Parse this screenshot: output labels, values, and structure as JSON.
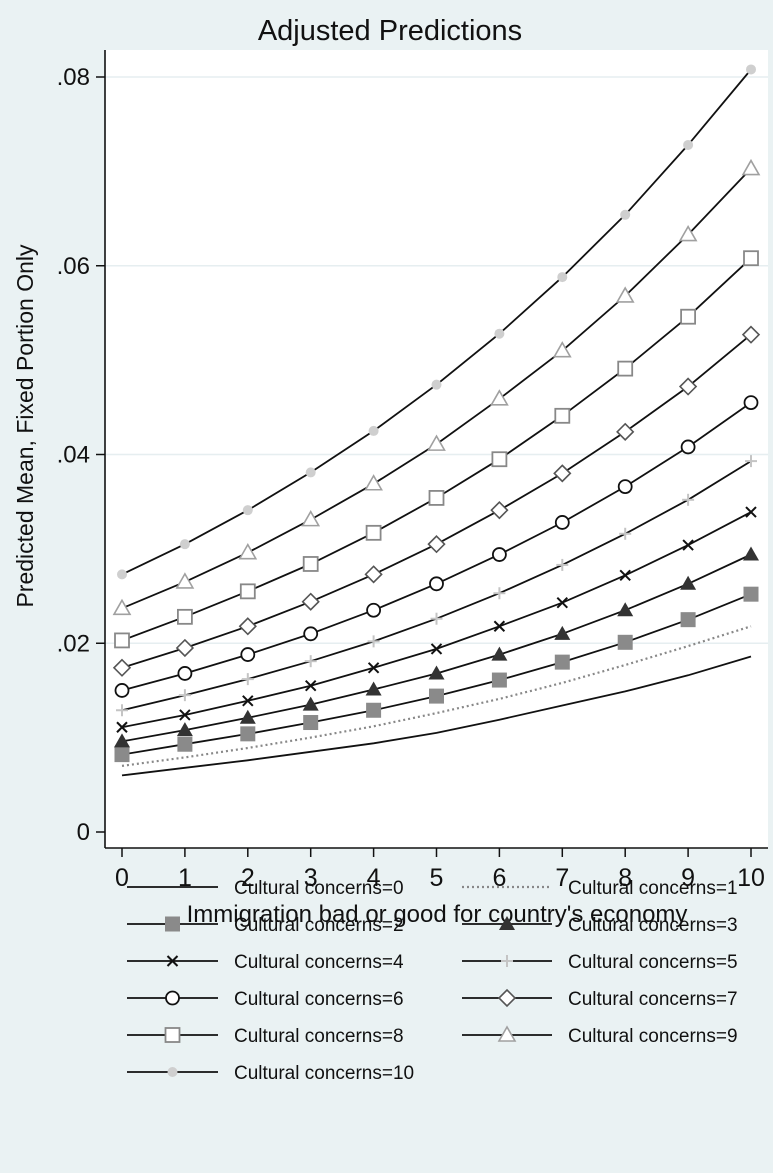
{
  "chart_data": {
    "type": "line",
    "title": "Adjusted Predictions",
    "xlabel": "Immigration bad or good for country's economy",
    "ylabel": "Predicted Mean, Fixed Portion Only",
    "x": [
      0,
      1,
      2,
      3,
      4,
      5,
      6,
      7,
      8,
      9,
      10
    ],
    "xlim": [
      0,
      10
    ],
    "ylim": [
      0,
      0.08
    ],
    "x_ticks": [
      0,
      1,
      2,
      3,
      4,
      5,
      6,
      7,
      8,
      9,
      10
    ],
    "x_tick_labels": [
      "0",
      "1",
      "2",
      "3",
      "4",
      "5",
      "6",
      "7",
      "8",
      "9",
      "10"
    ],
    "y_ticks": [
      0,
      0.02,
      0.04,
      0.06,
      0.08
    ],
    "y_tick_labels": [
      "0",
      ".02",
      ".04",
      ".06",
      ".08"
    ],
    "grid": true,
    "legend_position": "bottom",
    "series": [
      {
        "name": "Cultural concerns=0",
        "marker": "none",
        "dash": "solid",
        "color": "#111111",
        "values": [
          0.006,
          0.0068,
          0.0076,
          0.0085,
          0.0094,
          0.0105,
          0.0119,
          0.0134,
          0.0149,
          0.0166,
          0.0186
        ]
      },
      {
        "name": "Cultural concerns=1",
        "marker": "none",
        "dash": "dotted",
        "color": "#888888",
        "values": [
          0.007,
          0.0079,
          0.0089,
          0.01,
          0.0112,
          0.0126,
          0.0141,
          0.0158,
          0.0177,
          0.0197,
          0.0218
        ]
      },
      {
        "name": "Cultural concerns=2",
        "marker": "filled-square",
        "dash": "solid",
        "color": "#111111",
        "values": [
          0.0082,
          0.0093,
          0.0104,
          0.0116,
          0.0129,
          0.0144,
          0.0161,
          0.018,
          0.0201,
          0.0225,
          0.0252
        ]
      },
      {
        "name": "Cultural concerns=3",
        "marker": "filled-triangle",
        "dash": "solid",
        "color": "#111111",
        "values": [
          0.0096,
          0.0108,
          0.0121,
          0.0135,
          0.0151,
          0.0168,
          0.0188,
          0.021,
          0.0235,
          0.0263,
          0.0294
        ]
      },
      {
        "name": "Cultural concerns=4",
        "marker": "x",
        "dash": "solid",
        "color": "#111111",
        "values": [
          0.0111,
          0.0124,
          0.0139,
          0.0155,
          0.0174,
          0.0194,
          0.0218,
          0.0243,
          0.0272,
          0.0304,
          0.0339
        ]
      },
      {
        "name": "Cultural concerns=5",
        "marker": "plus",
        "dash": "solid",
        "color": "#111111",
        "values": [
          0.0129,
          0.0145,
          0.0162,
          0.0181,
          0.0202,
          0.0226,
          0.0253,
          0.0283,
          0.0316,
          0.0352,
          0.0393
        ]
      },
      {
        "name": "Cultural concerns=6",
        "marker": "hollow-circle",
        "dash": "solid",
        "color": "#111111",
        "values": [
          0.015,
          0.0168,
          0.0188,
          0.021,
          0.0235,
          0.0263,
          0.0294,
          0.0328,
          0.0366,
          0.0408,
          0.0455
        ]
      },
      {
        "name": "Cultural concerns=7",
        "marker": "hollow-diamond",
        "dash": "solid",
        "color": "#111111",
        "values": [
          0.0174,
          0.0195,
          0.0218,
          0.0244,
          0.0273,
          0.0305,
          0.0341,
          0.038,
          0.0424,
          0.0472,
          0.0527
        ]
      },
      {
        "name": "Cultural concerns=8",
        "marker": "hollow-square",
        "dash": "solid",
        "color": "#111111",
        "values": [
          0.0203,
          0.0228,
          0.0255,
          0.0284,
          0.0317,
          0.0354,
          0.0395,
          0.0441,
          0.0491,
          0.0546,
          0.0608
        ]
      },
      {
        "name": "Cultural concerns=9",
        "marker": "hollow-triangle",
        "dash": "solid",
        "color": "#111111",
        "values": [
          0.0237,
          0.0265,
          0.0296,
          0.0331,
          0.0369,
          0.0411,
          0.0459,
          0.051,
          0.0568,
          0.0633,
          0.0703
        ]
      },
      {
        "name": "Cultural concerns=10",
        "marker": "filled-circle",
        "dash": "solid",
        "color": "#111111",
        "values": [
          0.0273,
          0.0305,
          0.0341,
          0.0381,
          0.0425,
          0.0474,
          0.0528,
          0.0588,
          0.0654,
          0.0728,
          0.0808
        ]
      }
    ]
  }
}
